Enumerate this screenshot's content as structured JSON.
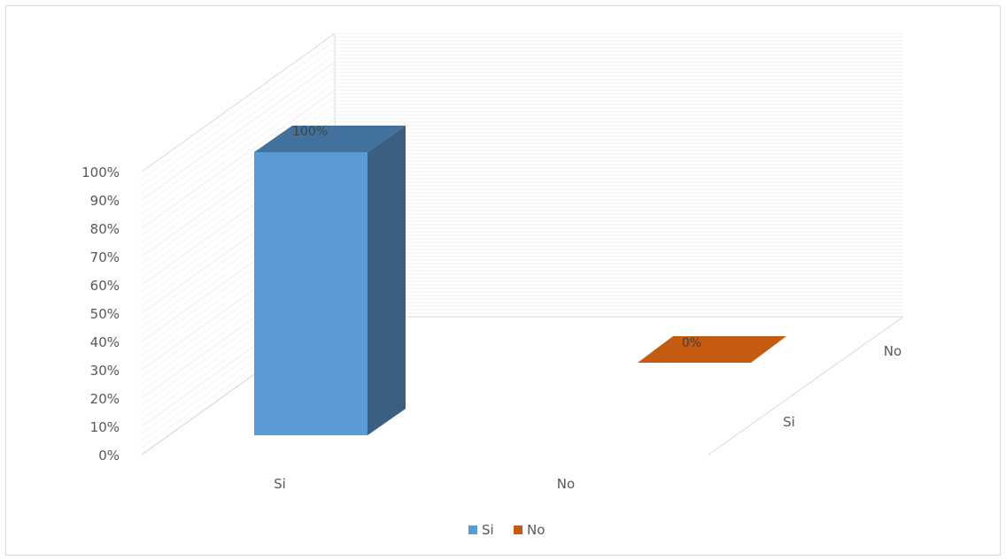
{
  "chart_data": {
    "type": "bar",
    "style": "3d-column",
    "categories": [
      "Si",
      "No"
    ],
    "depth_categories": [
      "Si",
      "No"
    ],
    "series": [
      {
        "name": "Si",
        "values": [
          1.0,
          null
        ],
        "color": "#5b9bd5"
      },
      {
        "name": "No",
        "values": [
          null,
          0.0
        ],
        "color": "#c55a11"
      }
    ],
    "data_labels": [
      "100%",
      "0%"
    ],
    "y_ticks": [
      "0%",
      "10%",
      "20%",
      "30%",
      "40%",
      "50%",
      "60%",
      "70%",
      "80%",
      "90%",
      "100%"
    ],
    "ylim": [
      0,
      1
    ],
    "legend": {
      "position": "bottom",
      "entries": [
        "Si",
        "No"
      ]
    },
    "grid": true
  }
}
